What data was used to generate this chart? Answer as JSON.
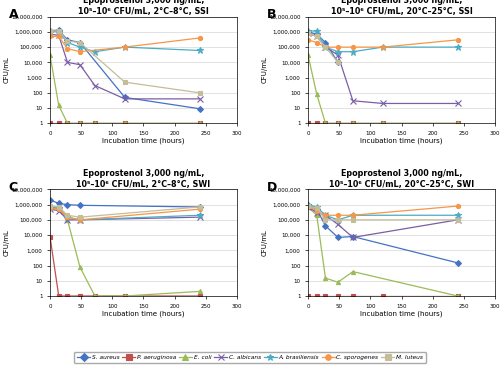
{
  "time_points": [
    0,
    14,
    28,
    48,
    72,
    120,
    240
  ],
  "panels": {
    "A": {
      "title": "Epoprostenol 3,000 ng/mL,\n10⁵–10⁶ CFU/mL, 2°C–8°C, SSI",
      "S_aureus": [
        1200000,
        1300000,
        300000,
        200000,
        null,
        50,
        9
      ],
      "P_aeruginosa": [
        1,
        1,
        1,
        1,
        1,
        1,
        1
      ],
      "E_coli": [
        30000,
        15,
        1,
        1,
        1,
        1,
        1
      ],
      "C_albicans": [
        700000,
        600000,
        10000,
        7000,
        300,
        40,
        40
      ],
      "A_brasiliensis": [
        1100000,
        1000000,
        200000,
        100000,
        50000,
        100000,
        60000
      ],
      "C_sporogenes": [
        500000,
        500000,
        80000,
        50000,
        null,
        100000,
        400000
      ],
      "M_luteus": [
        1100000,
        1200000,
        250000,
        200000,
        null,
        500,
        100
      ]
    },
    "B": {
      "title": "Epoprostenol 3,000 ng/mL,\n10⁵–10⁶ CFU/mL, 20°C–25°C, SSI",
      "S_aureus": [
        1000000,
        700000,
        200000,
        10000,
        null,
        null,
        null
      ],
      "P_aeruginosa": [
        1,
        1,
        1,
        1,
        1,
        1,
        1
      ],
      "E_coli": [
        30000,
        80,
        1,
        1,
        1,
        1,
        1
      ],
      "C_albicans": [
        800000,
        500000,
        100000,
        30000,
        30,
        20,
        20
      ],
      "A_brasiliensis": [
        1200000,
        1100000,
        100000,
        50000,
        50000,
        100000,
        100000
      ],
      "C_sporogenes": [
        300000,
        200000,
        100000,
        100000,
        100000,
        100000,
        300000
      ],
      "M_luteus": [
        800000,
        500000,
        100000,
        10000,
        null,
        null,
        null
      ]
    },
    "C": {
      "title": "Epoprostenol 3,000 ng/mL,\n10⁵–10⁶ CFU/mL, 2°C–8°C, SWI",
      "S_aureus": [
        2000000,
        1200000,
        1000000,
        900000,
        null,
        null,
        700000
      ],
      "P_aeruginosa": [
        8000,
        1,
        1,
        1,
        1,
        1,
        1
      ],
      "E_coli": [
        700000,
        500000,
        100000,
        80,
        1,
        1,
        2
      ],
      "C_albicans": [
        500000,
        400000,
        100000,
        100000,
        null,
        null,
        150000
      ],
      "A_brasiliensis": [
        700000,
        600000,
        150000,
        100000,
        null,
        null,
        200000
      ],
      "C_sporogenes": [
        600000,
        500000,
        150000,
        100000,
        null,
        null,
        500000
      ],
      "M_luteus": [
        800000,
        700000,
        200000,
        150000,
        null,
        null,
        700000
      ]
    },
    "D": {
      "title": "Epoprostenol 3,000 ng/mL,\n10⁵–10⁶ CFU/mL, 20°C–25°C, SWI",
      "S_aureus": [
        1000000,
        500000,
        40000,
        7000,
        8000,
        null,
        150
      ],
      "P_aeruginosa": [
        1,
        1,
        1,
        1,
        1,
        1,
        1
      ],
      "E_coli": [
        700000,
        200000,
        15,
        8,
        40,
        null,
        1
      ],
      "C_albicans": [
        700000,
        300000,
        200000,
        50000,
        7000,
        null,
        100000
      ],
      "A_brasiliensis": [
        1000000,
        700000,
        200000,
        100000,
        200000,
        null,
        200000
      ],
      "C_sporogenes": [
        800000,
        400000,
        200000,
        200000,
        200000,
        null,
        800000
      ],
      "M_luteus": [
        800000,
        600000,
        100000,
        100000,
        100000,
        null,
        100000
      ]
    }
  },
  "species_order": [
    "S_aureus",
    "P_aeruginosa",
    "E_coli",
    "C_albicans",
    "A_brasiliensis",
    "C_sporogenes",
    "M_luteus"
  ],
  "colors": {
    "S_aureus": "#4472C4",
    "P_aeruginosa": "#C0504D",
    "E_coli": "#9BBB59",
    "C_albicans": "#7B5EA7",
    "A_brasiliensis": "#4BACC6",
    "C_sporogenes": "#F79646",
    "M_luteus": "#C4BD97"
  },
  "marker_styles": {
    "S_aureus": "D",
    "P_aeruginosa": "s",
    "E_coli": "^",
    "C_albicans": "x",
    "A_brasiliensis": "*",
    "C_sporogenes": "o",
    "M_luteus": "s"
  },
  "legend_labels": {
    "S_aureus": "S. aureus",
    "P_aeruginosa": "P. aeruginosa",
    "E_coli": "E. coli",
    "C_albicans": "C. albicans",
    "A_brasiliensis": "A. brasiliensis",
    "C_sporogenes": "C. sporogenes",
    "M_luteus": "M. luteus"
  },
  "xlim": [
    0,
    300
  ],
  "xticks": [
    0,
    50,
    100,
    150,
    200,
    250,
    300
  ],
  "ylim": [
    1,
    10000000
  ],
  "yticks": [
    1,
    10,
    100,
    1000,
    10000,
    100000,
    1000000,
    10000000
  ],
  "ytick_labels": [
    "1",
    "10",
    "100",
    "1,000",
    "10,000",
    "100,000",
    "1,000,000",
    "10,000,000"
  ]
}
